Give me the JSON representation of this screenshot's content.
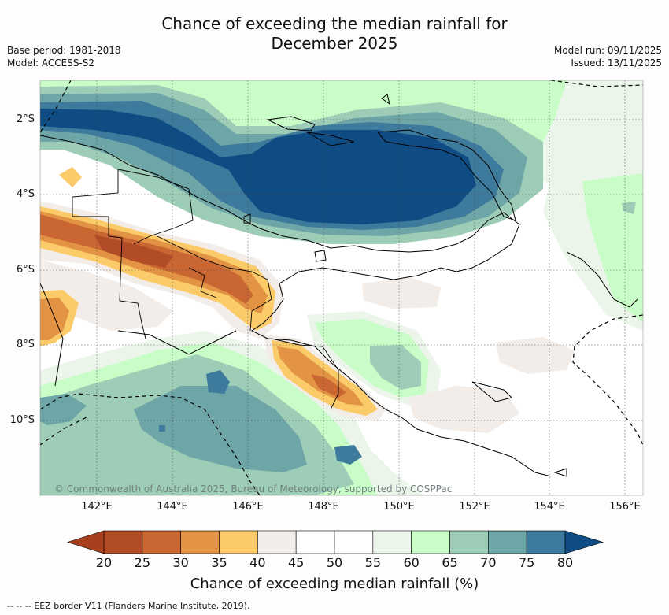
{
  "title_line1": "Chance of exceeding the median rainfall for",
  "title_line2": "December 2025",
  "base_period": "Base period: 1981-2018",
  "model": "Model: ACCESS-S2",
  "model_run": "Model run: 09/11/2025",
  "issued": "Issued: 13/11/2025",
  "lat_labels": [
    "2°S",
    "4°S",
    "6°S",
    "8°S",
    "10°S"
  ],
  "lon_labels": [
    "142°E",
    "144°E",
    "146°E",
    "148°E",
    "150°E",
    "152°E",
    "154°E",
    "156°E"
  ],
  "copyright": "© Commonwealth of Australia 2025, Bureau of Meteorology, supported by COSPPac",
  "colorbar": {
    "title": "Chance of exceeding median rainfall (%)",
    "ticks": [
      "20",
      "25",
      "30",
      "35",
      "40",
      "45",
      "50",
      "55",
      "60",
      "65",
      "70",
      "75",
      "80"
    ],
    "colors": [
      "#a8401e",
      "#b24c26",
      "#c96632",
      "#e29343",
      "#fccb69",
      "#f2ede8",
      "#ffffff",
      "#ffffff",
      "#ebf5ea",
      "#c9fdc8",
      "#9dcdb6",
      "#6ea5a7",
      "#3e7a9c",
      "#0f4c84"
    ]
  },
  "footer": "--  --  -- EEZ border V11 (Flanders Marine Institute, 2019)."
}
